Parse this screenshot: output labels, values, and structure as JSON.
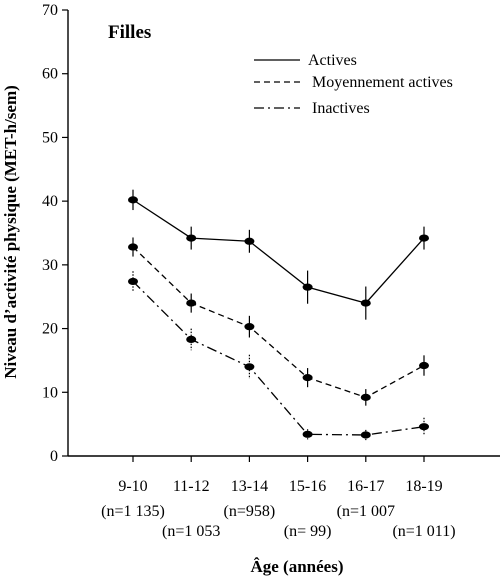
{
  "chart_data": {
    "type": "line",
    "title": "Filles",
    "ylabel": "Niveau d’activité physique (MET-h/sem)",
    "xlabel": "Âge (années)",
    "ylim": [
      0,
      70
    ],
    "yticks": [
      0,
      10,
      20,
      30,
      40,
      50,
      60,
      70
    ],
    "categories": [
      "9-10",
      "11-12",
      "13-14",
      "15-16",
      "16-17",
      "18-19"
    ],
    "sample_sizes": [
      "(n=1 135)",
      "(n=1 053",
      "(n=958)",
      "(n=  99)",
      "(n=1 007",
      "(n=1 011)"
    ],
    "legend_position": "top-right",
    "grid": false,
    "series": [
      {
        "name": "Actives",
        "style": "solid",
        "values": [
          40.2,
          34.2,
          33.7,
          26.5,
          24.0,
          34.2
        ],
        "err": [
          1.6,
          1.8,
          1.8,
          2.6,
          2.6,
          1.8
        ]
      },
      {
        "name": "Moyennement actives",
        "style": "dashed",
        "values": [
          32.8,
          24.0,
          20.3,
          12.3,
          9.2,
          14.2
        ],
        "err": [
          1.5,
          1.5,
          1.7,
          1.5,
          1.3,
          1.6
        ]
      },
      {
        "name": "Inactives",
        "style": "dashdot",
        "values": [
          27.4,
          18.3,
          14.0,
          3.4,
          3.3,
          4.6
        ],
        "err": [
          1.6,
          1.7,
          1.9,
          0.8,
          0.8,
          1.4
        ]
      }
    ]
  }
}
